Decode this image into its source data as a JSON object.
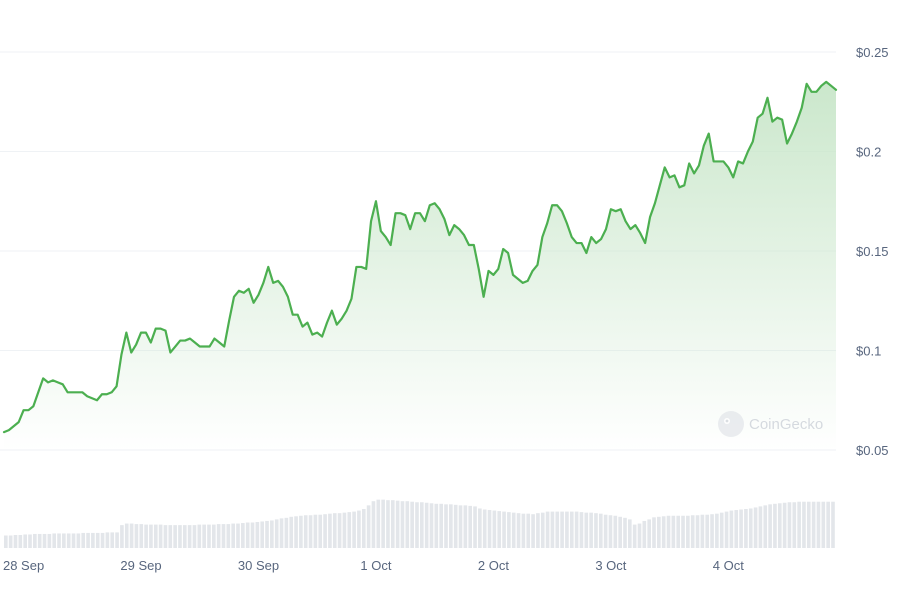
{
  "chart_data": {
    "type": "area",
    "title": "",
    "xlabel": "",
    "ylabel": "",
    "x_ticks": [
      "28 Sep",
      "29 Sep",
      "30 Sep",
      "1 Oct",
      "2 Oct",
      "3 Oct",
      "4 Oct"
    ],
    "y_ticks": [
      "$0.25",
      "$0.2",
      "$0.15",
      "$0.1",
      "$0.05"
    ],
    "y_tick_values": [
      0.25,
      0.2,
      0.15,
      0.1,
      0.05
    ],
    "ylim": [
      0.05,
      0.25
    ],
    "x_start": "2023-09-27 20:00",
    "x_step_hours": 1,
    "grid": true,
    "watermark": "CoinGecko",
    "colors": {
      "line": "#4caf50",
      "fill_top": "#c8e6c9",
      "grid": "#eff2f5",
      "volume": "#e3e6ea"
    },
    "series": [
      {
        "values": [
          0.059,
          0.06,
          0.062,
          0.064,
          0.07,
          0.07,
          0.072,
          0.079,
          0.086,
          0.084,
          0.085,
          0.084,
          0.083,
          0.079,
          0.079,
          0.079,
          0.079,
          0.077,
          0.076,
          0.075,
          0.078,
          0.078,
          0.079,
          0.082,
          0.098,
          0.109,
          0.099,
          0.103,
          0.109,
          0.109,
          0.104,
          0.111,
          0.111,
          0.11,
          0.099,
          0.102,
          0.105,
          0.105,
          0.106,
          0.104,
          0.102,
          0.102,
          0.102,
          0.106,
          0.104,
          0.102,
          0.115,
          0.127,
          0.13,
          0.129,
          0.131,
          0.124,
          0.128,
          0.134,
          0.142,
          0.134,
          0.135,
          0.132,
          0.127,
          0.118,
          0.118,
          0.112,
          0.114,
          0.108,
          0.109,
          0.107,
          0.114,
          0.12,
          0.113,
          0.116,
          0.12,
          0.126,
          0.142,
          0.142,
          0.141,
          0.165,
          0.175,
          0.16,
          0.157,
          0.153,
          0.169,
          0.169,
          0.168,
          0.161,
          0.169,
          0.169,
          0.165,
          0.173,
          0.174,
          0.171,
          0.166,
          0.158,
          0.163,
          0.161,
          0.158,
          0.153,
          0.153,
          0.141,
          0.127,
          0.14,
          0.138,
          0.141,
          0.151,
          0.149,
          0.138,
          0.136,
          0.134,
          0.135,
          0.14,
          0.143,
          0.157,
          0.164,
          0.173,
          0.173,
          0.17,
          0.164,
          0.157,
          0.154,
          0.154,
          0.149,
          0.157,
          0.154,
          0.156,
          0.161,
          0.171,
          0.17,
          0.171,
          0.165,
          0.161,
          0.163,
          0.159,
          0.154,
          0.167,
          0.174,
          0.183,
          0.192,
          0.187,
          0.188,
          0.182,
          0.183,
          0.194,
          0.189,
          0.193,
          0.203,
          0.209,
          0.195,
          0.195,
          0.195,
          0.192,
          0.187,
          0.195,
          0.194,
          0.2,
          0.205,
          0.217,
          0.219,
          0.227,
          0.215,
          0.217,
          0.216,
          0.204,
          0.209,
          0.215,
          0.222,
          0.234,
          0.23,
          0.23,
          0.233,
          0.235,
          0.233,
          0.231
        ]
      }
    ],
    "volume": [
      0.24,
      0.24,
      0.25,
      0.25,
      0.26,
      0.26,
      0.27,
      0.27,
      0.27,
      0.27,
      0.28,
      0.28,
      0.28,
      0.28,
      0.28,
      0.28,
      0.29,
      0.29,
      0.29,
      0.29,
      0.29,
      0.3,
      0.3,
      0.3,
      0.44,
      0.47,
      0.47,
      0.46,
      0.46,
      0.45,
      0.45,
      0.45,
      0.45,
      0.44,
      0.44,
      0.44,
      0.44,
      0.44,
      0.44,
      0.44,
      0.45,
      0.45,
      0.45,
      0.45,
      0.46,
      0.46,
      0.46,
      0.47,
      0.47,
      0.48,
      0.49,
      0.49,
      0.5,
      0.51,
      0.52,
      0.53,
      0.55,
      0.57,
      0.58,
      0.6,
      0.61,
      0.62,
      0.63,
      0.63,
      0.64,
      0.64,
      0.65,
      0.66,
      0.67,
      0.67,
      0.68,
      0.69,
      0.7,
      0.72,
      0.75,
      0.82,
      0.9,
      0.93,
      0.93,
      0.92,
      0.92,
      0.91,
      0.9,
      0.9,
      0.89,
      0.88,
      0.88,
      0.87,
      0.86,
      0.85,
      0.85,
      0.84,
      0.84,
      0.83,
      0.82,
      0.82,
      0.81,
      0.8,
      0.76,
      0.74,
      0.73,
      0.72,
      0.71,
      0.7,
      0.69,
      0.68,
      0.67,
      0.66,
      0.66,
      0.65,
      0.67,
      0.68,
      0.7,
      0.7,
      0.7,
      0.7,
      0.7,
      0.7,
      0.7,
      0.69,
      0.68,
      0.68,
      0.67,
      0.66,
      0.64,
      0.63,
      0.62,
      0.6,
      0.58,
      0.55,
      0.45,
      0.47,
      0.52,
      0.55,
      0.59,
      0.6,
      0.61,
      0.62,
      0.62,
      0.62,
      0.62,
      0.62,
      0.63,
      0.63,
      0.64,
      0.64,
      0.65,
      0.66,
      0.68,
      0.7,
      0.72,
      0.73,
      0.74,
      0.75,
      0.76,
      0.78,
      0.8,
      0.82,
      0.84,
      0.85,
      0.86,
      0.87,
      0.88,
      0.88,
      0.89,
      0.89,
      0.89,
      0.89,
      0.89,
      0.89,
      0.89,
      0.89
    ]
  }
}
